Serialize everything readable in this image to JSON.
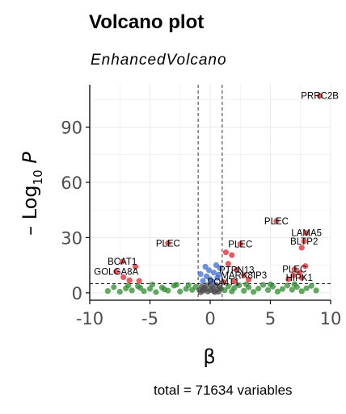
{
  "chart_data": {
    "type": "scatter",
    "title": "Volcano plot",
    "subtitle": "EnhancedVolcano",
    "caption": "total = 71634 variables",
    "xlabel": "β",
    "ylabel": {
      "prefix": "– Log",
      "sub": "10",
      "suffix": " P"
    },
    "xlim": [
      -10,
      10
    ],
    "ylim": [
      -4,
      113
    ],
    "x_ticks": [
      -10,
      -5,
      0,
      5,
      10
    ],
    "y_ticks": [
      0,
      30,
      60,
      90
    ],
    "grid": true,
    "thresholds": {
      "fc": 1,
      "p_log10": 5
    },
    "colors": {
      "ns": "#4d4d4d",
      "log2fc": "#2f8b2f",
      "p": "#3f6bd1",
      "both": "#e0242a"
    },
    "series": [
      {
        "category": "ns",
        "points": [
          [
            -0.8,
            0.3
          ],
          [
            -0.6,
            1.1
          ],
          [
            -0.4,
            2.0
          ],
          [
            -0.2,
            0.7
          ],
          [
            0.0,
            1.5
          ],
          [
            0.2,
            2.6
          ],
          [
            0.4,
            0.4
          ],
          [
            0.6,
            1.8
          ],
          [
            0.8,
            3.0
          ],
          [
            -0.7,
            3.4
          ],
          [
            -0.3,
            4.1
          ],
          [
            0.1,
            3.7
          ],
          [
            0.5,
            4.3
          ],
          [
            0.9,
            2.2
          ],
          [
            -0.9,
            1.6
          ],
          [
            0.3,
            0.9
          ],
          [
            -0.5,
            2.8
          ],
          [
            0.7,
            0.6
          ]
        ]
      },
      {
        "category": "log2fc",
        "points": [
          [
            -8.5,
            1.0
          ],
          [
            -8.0,
            3.1
          ],
          [
            -7.5,
            0.6
          ],
          [
            -7.0,
            2.4
          ],
          [
            -6.5,
            1.3
          ],
          [
            -6.0,
            3.6
          ],
          [
            -5.5,
            0.9
          ],
          [
            -5.0,
            2.2
          ],
          [
            -4.5,
            0.4
          ],
          [
            -4.0,
            2.9
          ],
          [
            -3.5,
            1.2
          ],
          [
            -3.0,
            3.9
          ],
          [
            -2.5,
            0.7
          ],
          [
            -2.0,
            2.1
          ],
          [
            -1.8,
            4.2
          ],
          [
            -1.5,
            1.6
          ],
          [
            -1.2,
            3.3
          ],
          [
            -2.8,
            4.4
          ],
          [
            -6.8,
            4.0
          ],
          [
            -5.8,
            2.7
          ],
          [
            -4.8,
            4.5
          ],
          [
            -3.8,
            1.9
          ],
          [
            1.2,
            1.4
          ],
          [
            1.5,
            3.5
          ],
          [
            1.8,
            0.8
          ],
          [
            2.0,
            2.6
          ],
          [
            2.4,
            4.1
          ],
          [
            2.8,
            1.1
          ],
          [
            3.2,
            3.0
          ],
          [
            3.6,
            0.5
          ],
          [
            4.0,
            2.3
          ],
          [
            4.4,
            4.3
          ],
          [
            4.8,
            1.5
          ],
          [
            5.2,
            3.4
          ],
          [
            5.6,
            0.7
          ],
          [
            6.0,
            2.1
          ],
          [
            6.4,
            4.0
          ],
          [
            6.8,
            1.7
          ],
          [
            7.2,
            3.2
          ],
          [
            7.6,
            0.9
          ],
          [
            8.0,
            2.5
          ],
          [
            8.4,
            3.8
          ],
          [
            8.8,
            1.3
          ],
          [
            3.0,
            4.6
          ],
          [
            5.0,
            4.6
          ],
          [
            7.0,
            4.7
          ]
        ]
      },
      {
        "category": "p",
        "points": [
          [
            -0.6,
            6.5
          ],
          [
            -0.3,
            9.0
          ],
          [
            0.0,
            7.4
          ],
          [
            0.3,
            11.0
          ],
          [
            0.6,
            8.2
          ],
          [
            0.8,
            13.5
          ],
          [
            -0.8,
            10.2
          ],
          [
            0.5,
            15.0
          ],
          [
            -0.1,
            12.3
          ],
          [
            0.2,
            6.0
          ],
          [
            0.7,
            9.8
          ],
          [
            -0.4,
            14.2
          ]
        ]
      },
      {
        "category": "both",
        "points": [
          [
            9.1,
            107.0
          ],
          [
            5.5,
            39.0
          ],
          [
            8.0,
            32.5
          ],
          [
            7.8,
            28.0
          ],
          [
            7.6,
            24.5
          ],
          [
            -3.5,
            27.0
          ],
          [
            2.5,
            26.5
          ],
          [
            1.3,
            22.0
          ],
          [
            1.8,
            20.5
          ],
          [
            1.5,
            15.8
          ],
          [
            2.2,
            12.5
          ],
          [
            2.8,
            9.5
          ],
          [
            -7.3,
            17.0
          ],
          [
            -6.2,
            14.2
          ],
          [
            -7.8,
            11.5
          ],
          [
            -7.2,
            8.5
          ],
          [
            -6.7,
            6.8
          ],
          [
            -5.9,
            6.5
          ],
          [
            7.0,
            12.8
          ],
          [
            7.4,
            11.0
          ],
          [
            6.9,
            9.5
          ],
          [
            7.6,
            8.2
          ],
          [
            6.5,
            7.4
          ],
          [
            7.9,
            14.5
          ],
          [
            3.2,
            7.2
          ],
          [
            1.1,
            5.8
          ],
          [
            2.0,
            6.2
          ]
        ]
      }
    ],
    "labels": [
      {
        "text": "PRRC2B",
        "x": 9.1,
        "y": 107.0
      },
      {
        "text": "PLEC",
        "x": 5.5,
        "y": 39.0
      },
      {
        "text": "LAMA5",
        "x": 8.0,
        "y": 32.5
      },
      {
        "text": "BLTP2",
        "x": 7.8,
        "y": 28.0
      },
      {
        "text": "PLEC",
        "x": -3.5,
        "y": 27.0
      },
      {
        "text": "PLEC",
        "x": 2.5,
        "y": 26.5
      },
      {
        "text": "PTPN13",
        "x": 2.2,
        "y": 12.5
      },
      {
        "text": "BCAT1",
        "x": -7.3,
        "y": 17.0
      },
      {
        "text": "GOLGA8A",
        "x": -7.8,
        "y": 11.5
      },
      {
        "text": "MARK8IP3",
        "x": 2.8,
        "y": 9.5
      },
      {
        "text": "PLEC",
        "x": 7.0,
        "y": 12.8
      },
      {
        "text": "HIPK1",
        "x": 7.4,
        "y": 8.2
      },
      {
        "text": "POMT1",
        "x": 1.1,
        "y": 5.8
      }
    ]
  }
}
